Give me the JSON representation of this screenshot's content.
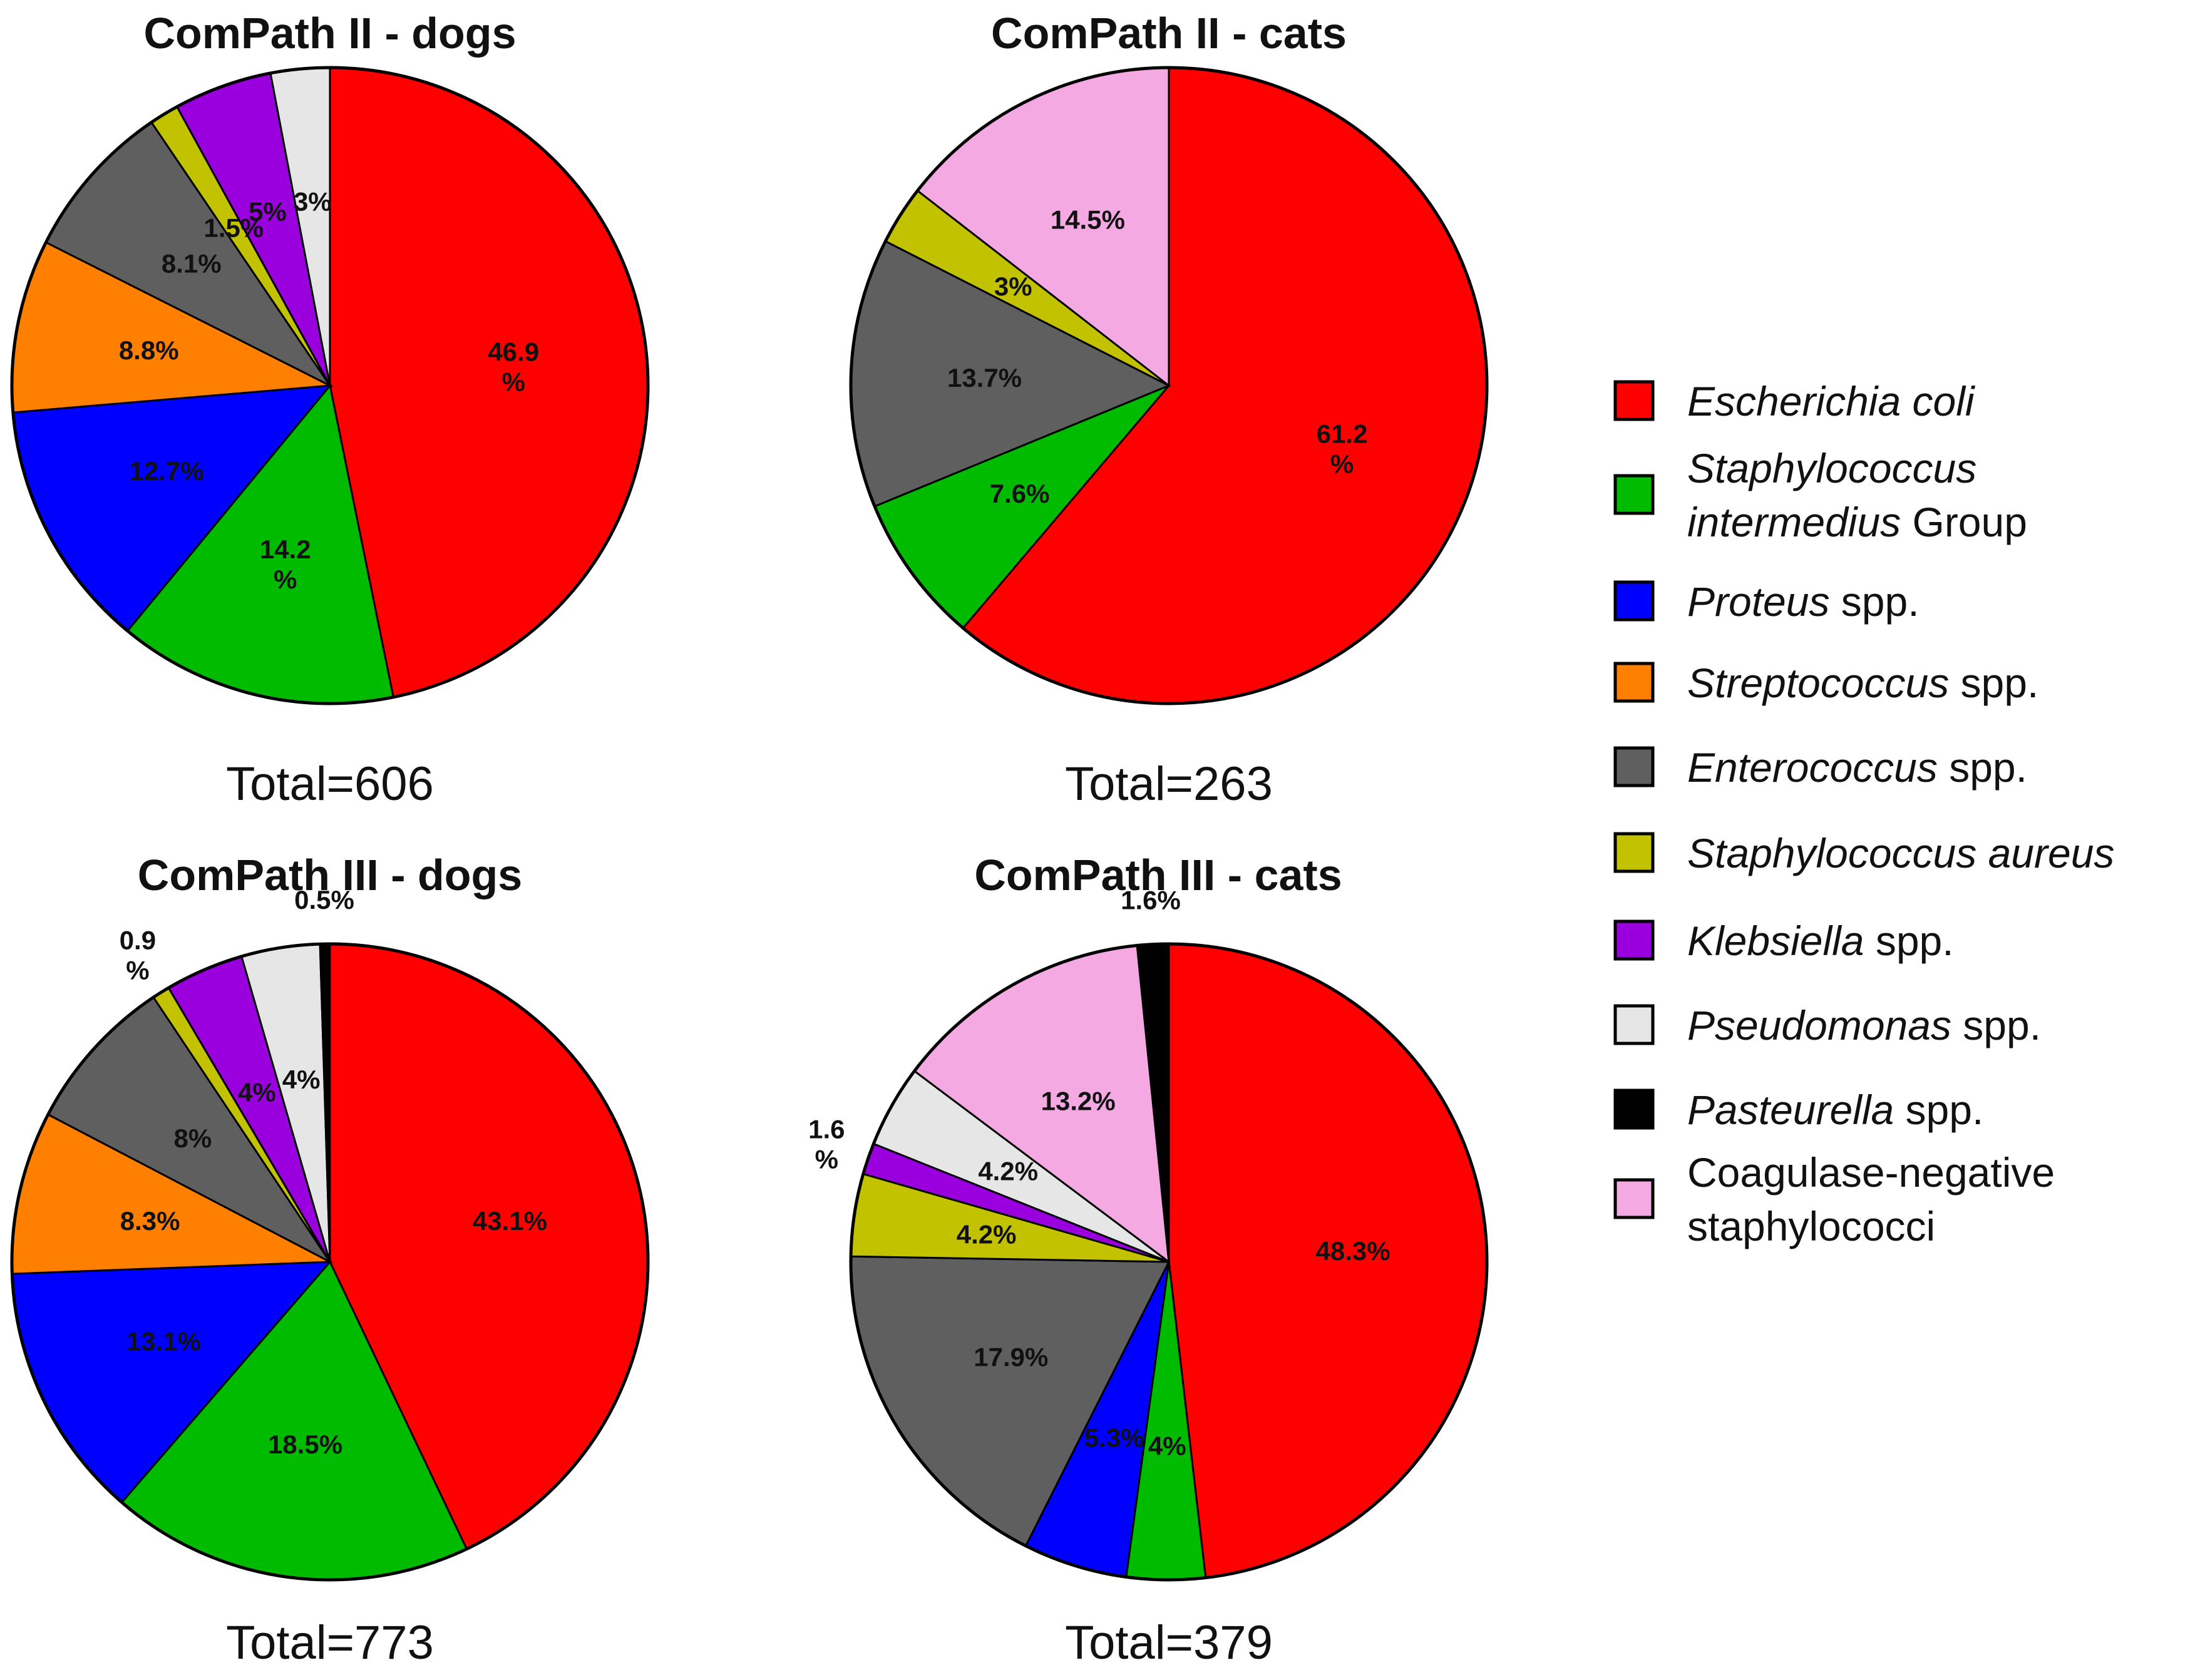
{
  "chart_data": [
    {
      "type": "pie",
      "title": "ComPath II - dogs",
      "total_label": "Total=606",
      "slices": [
        {
          "category": "Escherichia coli",
          "value": 46.9,
          "label": [
            "46.9",
            "%"
          ]
        },
        {
          "category": "Staphylococcus intermedius Group",
          "value": 14.2,
          "label": [
            "14.2",
            "%"
          ]
        },
        {
          "category": "Proteus spp.",
          "value": 12.7,
          "label": [
            "12.7%"
          ]
        },
        {
          "category": "Streptococcus spp.",
          "value": 8.8,
          "label": [
            "8.8%"
          ]
        },
        {
          "category": "Enterococcus spp.",
          "value": 8.1,
          "label": [
            "8.1%"
          ]
        },
        {
          "category": "Staphylococcus aureus",
          "value": 1.5,
          "label": [
            "1.5%"
          ]
        },
        {
          "category": "Klebsiella spp.",
          "value": 5,
          "label": [
            "5%"
          ]
        },
        {
          "category": "Pseudomonas spp.",
          "value": 3,
          "label": [
            "3%"
          ]
        }
      ]
    },
    {
      "type": "pie",
      "title": "ComPath II - cats",
      "total_label": "Total=263",
      "slices": [
        {
          "category": "Escherichia coli",
          "value": 61.2,
          "label": [
            "61.2",
            "%"
          ]
        },
        {
          "category": "Staphylococcus intermedius Group",
          "value": 7.6,
          "label": [
            "7.6%"
          ]
        },
        {
          "category": "Enterococcus spp.",
          "value": 13.7,
          "label": [
            "13.7%"
          ]
        },
        {
          "category": "Staphylococcus aureus",
          "value": 3,
          "label": [
            "3%"
          ]
        },
        {
          "category": "Coagulase-negative staphylococci",
          "value": 14.5,
          "label": [
            "14.5%"
          ]
        }
      ]
    },
    {
      "type": "pie",
      "title": "ComPath III - dogs",
      "total_label": "Total=773",
      "slices": [
        {
          "category": "Escherichia coli",
          "value": 43.1,
          "label": [
            "43.1%"
          ]
        },
        {
          "category": "Staphylococcus intermedius Group",
          "value": 18.5,
          "label": [
            "18.5%"
          ]
        },
        {
          "category": "Proteus spp.",
          "value": 13.1,
          "label": [
            "13.1%"
          ]
        },
        {
          "category": "Streptococcus spp.",
          "value": 8.3,
          "label": [
            "8.3%"
          ]
        },
        {
          "category": "Enterococcus spp.",
          "value": 8,
          "label": [
            "8%"
          ]
        },
        {
          "category": "Staphylococcus aureus",
          "value": 0.9,
          "label": [
            "0.9",
            "%"
          ],
          "external": true
        },
        {
          "category": "Klebsiella spp.",
          "value": 4,
          "label": [
            "4%"
          ]
        },
        {
          "category": "Pseudomonas spp.",
          "value": 4,
          "label": [
            "4%"
          ]
        },
        {
          "category": "Pasteurella spp.",
          "value": 0.5,
          "label": [
            "0.5%"
          ],
          "external": true
        }
      ]
    },
    {
      "type": "pie",
      "title": "ComPath III - cats",
      "total_label": "Total=379",
      "slices": [
        {
          "category": "Escherichia coli",
          "value": 48.3,
          "label": [
            "48.3%"
          ]
        },
        {
          "category": "Staphylococcus intermedius Group",
          "value": 4,
          "label": [
            "4%"
          ]
        },
        {
          "category": "Proteus spp.",
          "value": 5.3,
          "label": [
            "5.3%"
          ]
        },
        {
          "category": "Enterococcus spp.",
          "value": 17.9,
          "label": [
            "17.9%"
          ]
        },
        {
          "category": "Staphylococcus aureus",
          "value": 4.2,
          "label": [
            "4.2%"
          ]
        },
        {
          "category": "Klebsiella spp.",
          "value": 1.6,
          "label": [
            "1.6",
            "%"
          ],
          "external": true
        },
        {
          "category": "Pseudomonas spp.",
          "value": 4.2,
          "label": [
            "4.2%"
          ]
        },
        {
          "category": "Coagulase-negative staphylococci",
          "value": 13.2,
          "label": [
            "13.2%"
          ]
        },
        {
          "category": "Pasteurella spp.",
          "value": 1.6,
          "label": [
            "1.6%"
          ],
          "external": true
        }
      ]
    }
  ],
  "legend": {
    "placement": "right",
    "items": [
      {
        "key": "Escherichia coli",
        "color": "#ff0000",
        "parts": [
          {
            "text": "Escherichia coli",
            "italic": true
          }
        ]
      },
      {
        "key": "Staphylococcus intermedius Group",
        "color": "#00bb00",
        "parts": [
          {
            "text": "Staphylococcus",
            "italic": true
          },
          {
            "text": "intermedius",
            "italic": true,
            "newline": true
          },
          {
            "text": " Group",
            "italic": false
          }
        ]
      },
      {
        "key": "Proteus spp.",
        "color": "#0000ff",
        "parts": [
          {
            "text": "Proteus",
            "italic": true
          },
          {
            "text": " spp.",
            "italic": false
          }
        ]
      },
      {
        "key": "Streptococcus spp.",
        "color": "#ff7f00",
        "parts": [
          {
            "text": "Streptococcus",
            "italic": true
          },
          {
            "text": " spp.",
            "italic": false
          }
        ]
      },
      {
        "key": "Enterococcus spp.",
        "color": "#5f5f5f",
        "parts": [
          {
            "text": "Enterococcus",
            "italic": true
          },
          {
            "text": " spp.",
            "italic": false
          }
        ]
      },
      {
        "key": "Staphylococcus aureus",
        "color": "#c2c200",
        "parts": [
          {
            "text": "Staphylococcus aureus",
            "italic": true
          }
        ]
      },
      {
        "key": "Klebsiella spp.",
        "color": "#9900dd",
        "parts": [
          {
            "text": "Klebsiella",
            "italic": true
          },
          {
            "text": " spp.",
            "italic": false
          }
        ]
      },
      {
        "key": "Pseudomonas spp.",
        "color": "#e6e6e6",
        "parts": [
          {
            "text": "Pseudomonas",
            "italic": true
          },
          {
            "text": " spp.",
            "italic": false
          }
        ]
      },
      {
        "key": "Pasteurella spp.",
        "color": "#000000",
        "parts": [
          {
            "text": "Pasteurella",
            "italic": true
          },
          {
            "text": " spp.",
            "italic": false
          }
        ]
      },
      {
        "key": "Coagulase-negative staphylococci",
        "color": "#f4a9e2",
        "parts": [
          {
            "text": "Coagulase-negative",
            "italic": false
          },
          {
            "text": "staphylococci",
            "italic": false,
            "newline": true
          }
        ]
      }
    ]
  }
}
